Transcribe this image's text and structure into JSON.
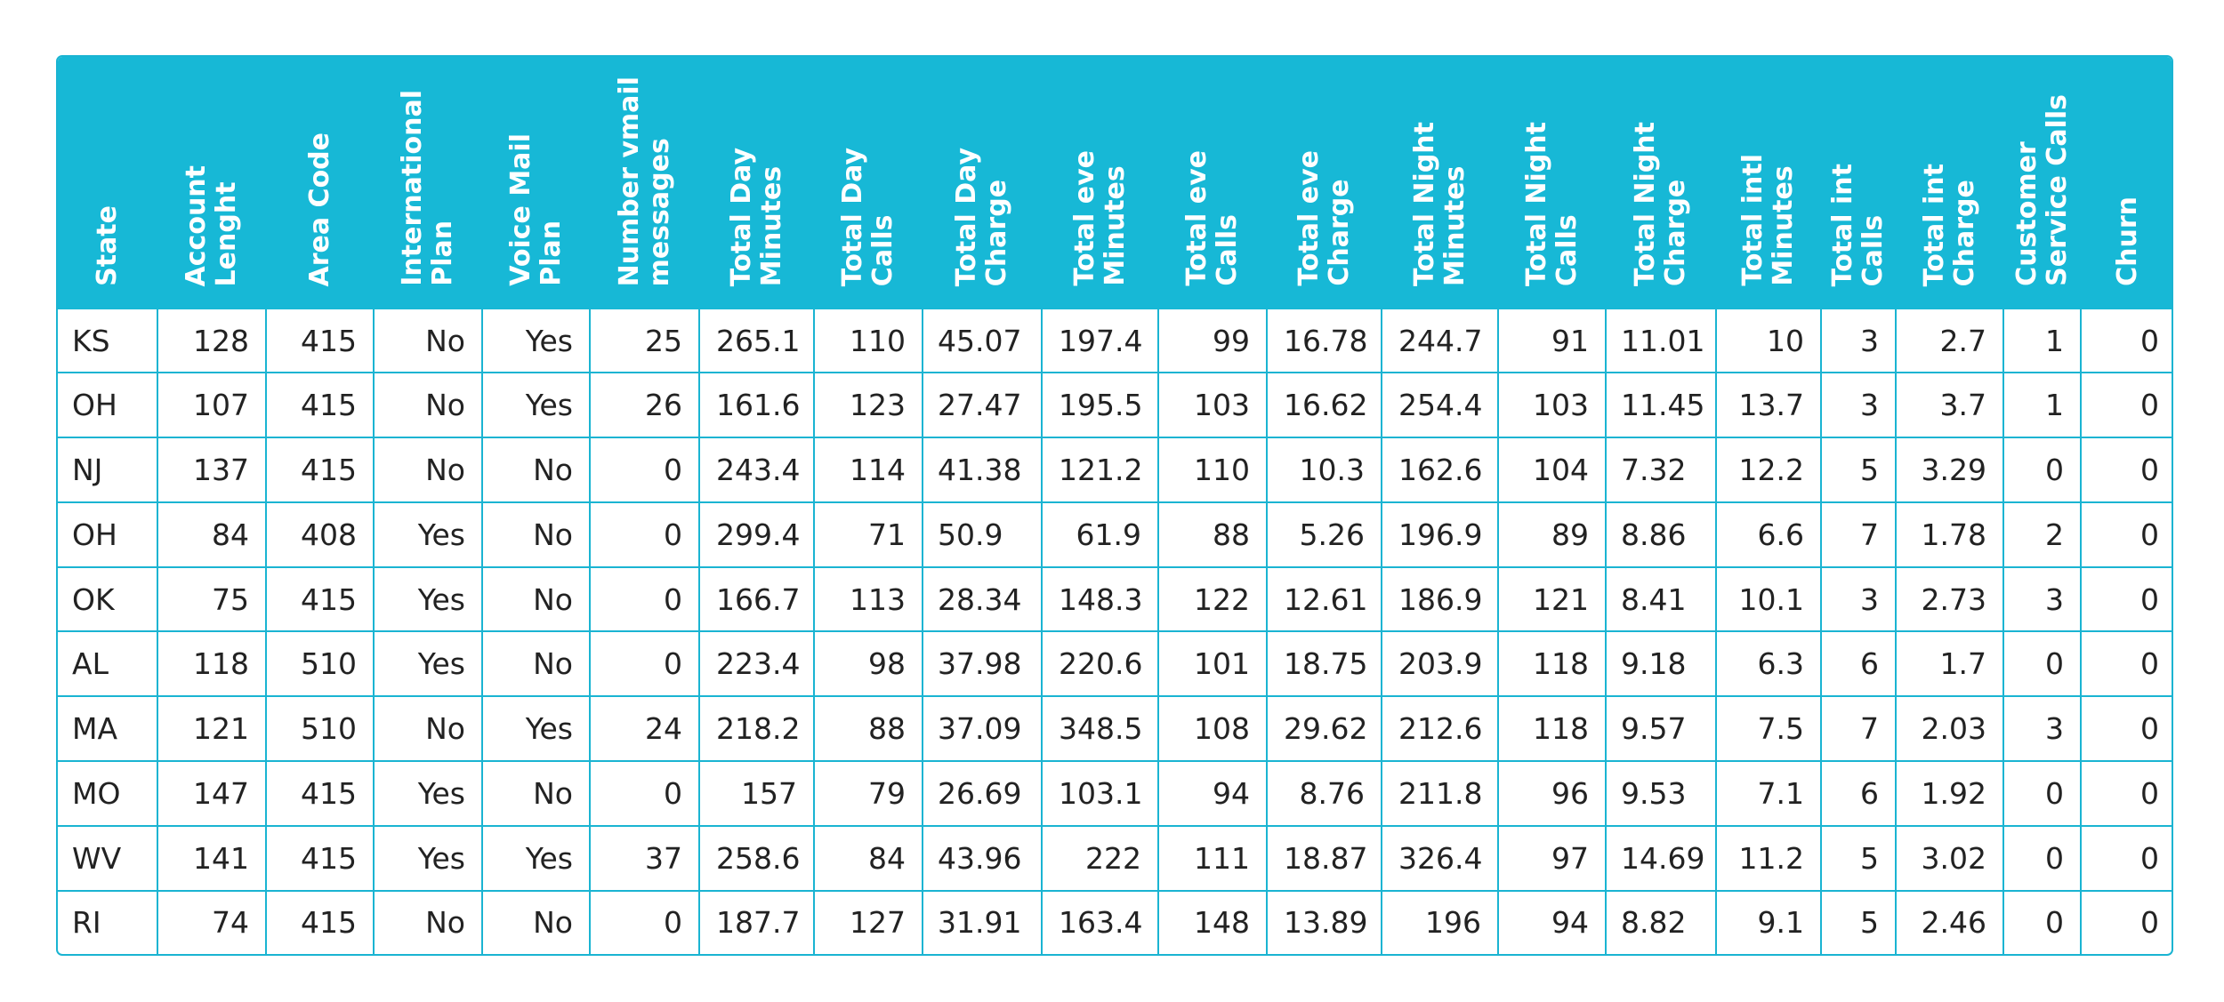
{
  "table": {
    "columns": [
      "State",
      "Account\nLenght",
      "Area Code",
      "International\nPlan",
      "Voice Mail\nPlan",
      "Number vmail\nmessages",
      "Total Day\nMinutes",
      "Total Day\nCalls",
      "Total Day\nCharge",
      "Total eve\nMinutes",
      "Total eve\nCalls",
      "Total eve\nCharge",
      "Total Night\nMinutes",
      "Total Night\nCalls",
      "Total Night\nCharge",
      "Total intl\nMinutes",
      "Total int\nCalls",
      "Total int\nCharge",
      "Customer\nService Calls",
      "Churn"
    ],
    "rows": [
      [
        "KS",
        "128",
        "415",
        "No",
        "Yes",
        "25",
        "265.1",
        "110",
        "45.07",
        "197.4",
        "99",
        "16.78",
        "244.7",
        "91",
        "11.01",
        "10",
        "3",
        "2.7",
        "1",
        "0"
      ],
      [
        "OH",
        "107",
        "415",
        "No",
        "Yes",
        "26",
        "161.6",
        "123",
        "27.47",
        "195.5",
        "103",
        "16.62",
        "254.4",
        "103",
        "11.45",
        "13.7",
        "3",
        "3.7",
        "1",
        "0"
      ],
      [
        "NJ",
        "137",
        "415",
        "No",
        "No",
        "0",
        "243.4",
        "114",
        "41.38",
        "121.2",
        "110",
        "10.3",
        "162.6",
        "104",
        "7.32",
        "12.2",
        "5",
        "3.29",
        "0",
        "0"
      ],
      [
        "OH",
        "84",
        "408",
        "Yes",
        "No",
        "0",
        "299.4",
        "71",
        "50.9",
        "61.9",
        "88",
        "5.26",
        "196.9",
        "89",
        "8.86",
        "6.6",
        "7",
        "1.78",
        "2",
        "0"
      ],
      [
        "OK",
        "75",
        "415",
        "Yes",
        "No",
        "0",
        "166.7",
        "113",
        "28.34",
        "148.3",
        "122",
        "12.61",
        "186.9",
        "121",
        "8.41",
        "10.1",
        "3",
        "2.73",
        "3",
        "0"
      ],
      [
        "AL",
        "118",
        "510",
        "Yes",
        "No",
        "0",
        "223.4",
        "98",
        "37.98",
        "220.6",
        "101",
        "18.75",
        "203.9",
        "118",
        "9.18",
        "6.3",
        "6",
        "1.7",
        "0",
        "0"
      ],
      [
        "MA",
        "121",
        "510",
        "No",
        "Yes",
        "24",
        "218.2",
        "88",
        "37.09",
        "348.5",
        "108",
        "29.62",
        "212.6",
        "118",
        "9.57",
        "7.5",
        "7",
        "2.03",
        "3",
        "0"
      ],
      [
        "MO",
        "147",
        "415",
        "Yes",
        "No",
        "0",
        "157",
        "79",
        "26.69",
        "103.1",
        "94",
        "8.76",
        "211.8",
        "96",
        "9.53",
        "7.1",
        "6",
        "1.92",
        "0",
        "0"
      ],
      [
        "WV",
        "141",
        "415",
        "Yes",
        "Yes",
        "37",
        "258.6",
        "84",
        "43.96",
        "222",
        "111",
        "18.87",
        "326.4",
        "97",
        "14.69",
        "11.2",
        "5",
        "3.02",
        "0",
        "0"
      ],
      [
        "RI",
        "74",
        "415",
        "No",
        "No",
        "0",
        "187.7",
        "127",
        "31.91",
        "163.4",
        "148",
        "13.89",
        "196",
        "94",
        "8.82",
        "9.1",
        "5",
        "2.46",
        "0",
        "0"
      ]
    ]
  },
  "colors": {
    "header_bg": "#17b8d6",
    "border": "#1ab4d2",
    "header_text": "#ffffff",
    "cell_text": "#222222"
  }
}
